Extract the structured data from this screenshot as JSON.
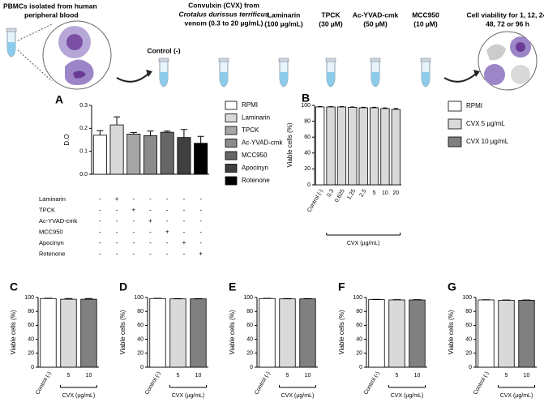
{
  "schematic": {
    "source": [
      "PBMCs isolated from human",
      "peripheral blood"
    ],
    "control": "Control (-)",
    "cvx": [
      "Convulxin (CVX) from",
      "Crotalus durissus terrificus",
      "venom (0.3 to 20 µg/mL)"
    ],
    "treatments": [
      [
        "Laminarin",
        "(100 µg/mL)"
      ],
      [
        "TPCK",
        "(30 µM)"
      ],
      [
        "Ac-YVAD-cmk",
        "(50 µM)"
      ],
      [
        "MCC950",
        "(10 µM)"
      ]
    ],
    "readout": [
      "Cell viability for 1, 12, 24,",
      "48, 72 or 96 h"
    ]
  },
  "chart_data": [
    {
      "type": "bar",
      "panel": "A",
      "ylabel": "D.O",
      "values": [
        0.17,
        0.215,
        0.175,
        0.168,
        0.183,
        0.16,
        0.135
      ],
      "errors": [
        0.02,
        0.035,
        0.007,
        0.02,
        0.005,
        0.035,
        0.03
      ],
      "colors": [
        "#ffffff",
        "#d9d9d9",
        "#a6a6a6",
        "#8c8c8c",
        "#666666",
        "#404040",
        "#000000"
      ],
      "ylim": [
        0,
        0.3
      ],
      "yticks": [
        {
          "value": 0,
          "label": "0.0"
        },
        0.1,
        0.2,
        0.3
      ],
      "legend": [
        {
          "name": "RPMI",
          "color": "#ffffff"
        },
        {
          "name": "Laminarin",
          "color": "#d9d9d9"
        },
        {
          "name": "TPCK",
          "color": "#a6a6a6"
        },
        {
          "name": "Ac-YVAD-cmk",
          "color": "#8c8c8c"
        },
        {
          "name": "MCC950",
          "color": "#666666"
        },
        {
          "name": "Apocinyn",
          "color": "#404040"
        },
        {
          "name": "Rotenone",
          "color": "#000000"
        }
      ],
      "treatments": [
        {
          "name": "Laminarin",
          "marks": [
            "-",
            "+",
            "-",
            "-",
            "-",
            "-",
            "-"
          ]
        },
        {
          "name": "TPCK",
          "marks": [
            "-",
            "-",
            "+",
            "-",
            "-",
            "-",
            "-"
          ]
        },
        {
          "name": "Ac-YVAD-cmk",
          "marks": [
            "-",
            "-",
            "-",
            "+",
            "-",
            "-",
            "-"
          ]
        },
        {
          "name": "MCC950",
          "marks": [
            "-",
            "-",
            "-",
            "-",
            "+",
            "-",
            "-"
          ]
        },
        {
          "name": "Apocinyn",
          "marks": [
            "-",
            "-",
            "-",
            "-",
            "-",
            "+",
            "-"
          ]
        },
        {
          "name": "Rotenone",
          "marks": [
            "-",
            "-",
            "-",
            "-",
            "-",
            "-",
            "+"
          ]
        }
      ]
    },
    {
      "type": "bar",
      "panel": "B",
      "ylabel": "Viable cells (%)",
      "xlabel": "CVX (µg/mL)",
      "categories": [
        "Control (-)",
        "0.3",
        "0.625",
        "1.25",
        "2.5",
        "5",
        "10",
        "20"
      ],
      "values": [
        98,
        98,
        98,
        97.5,
        97,
        97,
        96,
        95
      ],
      "errors": [
        0.5,
        0.4,
        0.4,
        0.5,
        0.6,
        0.6,
        0.8,
        1
      ],
      "colors": [
        "#ffffff",
        "#d9d9d9",
        "#d9d9d9",
        "#d9d9d9",
        "#d9d9d9",
        "#d9d9d9",
        "#d9d9d9",
        "#d9d9d9"
      ],
      "ylim": [
        0,
        100
      ],
      "yticks": [
        0,
        20,
        40,
        60,
        80,
        100
      ],
      "legend": [
        {
          "name": "RPMI",
          "color": "#ffffff"
        },
        {
          "name": "CVX 5 µg/mL",
          "color": "#d9d9d9"
        },
        {
          "name": "CVX 10 µg/mL",
          "color": "#808080"
        }
      ]
    },
    {
      "type": "bar",
      "panel": "C",
      "ylabel": "Viable cells (%)",
      "xlabel": "CVX (µg/mL)",
      "categories": [
        "Control (-)",
        "5",
        "10"
      ],
      "values": [
        98.5,
        97.5,
        97.5
      ],
      "errors": [
        0.4,
        1,
        1
      ],
      "colors": [
        "#ffffff",
        "#d9d9d9",
        "#808080"
      ],
      "ylim": [
        0,
        100
      ],
      "yticks": [
        0,
        20,
        40,
        60,
        80,
        100
      ]
    },
    {
      "type": "bar",
      "panel": "D",
      "ylabel": "Viable cells (%)",
      "xlabel": "CVX (µg/mL)",
      "categories": [
        "Control (-)",
        "5",
        "10"
      ],
      "values": [
        98.5,
        98,
        98
      ],
      "errors": [
        0.3,
        0.4,
        0.4
      ],
      "colors": [
        "#ffffff",
        "#d9d9d9",
        "#808080"
      ],
      "ylim": [
        0,
        100
      ],
      "yticks": [
        0,
        20,
        40,
        60,
        80,
        100
      ]
    },
    {
      "type": "bar",
      "panel": "E",
      "ylabel": "Viable cells (%)",
      "xlabel": "CVX (µg/mL)",
      "categories": [
        "Control (-)",
        "5",
        "10"
      ],
      "values": [
        98.5,
        98,
        98
      ],
      "errors": [
        0.3,
        0.4,
        0.4
      ],
      "colors": [
        "#ffffff",
        "#d9d9d9",
        "#808080"
      ],
      "ylim": [
        0,
        100
      ],
      "yticks": [
        0,
        20,
        40,
        60,
        80,
        100
      ]
    },
    {
      "type": "bar",
      "panel": "F",
      "ylabel": "Viable cells (%)",
      "xlabel": "CVX (µg/mL)",
      "categories": [
        "Control (-)",
        "5",
        "10"
      ],
      "values": [
        97,
        96.5,
        96.5
      ],
      "errors": [
        0.3,
        0.4,
        0.4
      ],
      "colors": [
        "#ffffff",
        "#d9d9d9",
        "#808080"
      ],
      "ylim": [
        0,
        100
      ],
      "yticks": [
        0,
        20,
        40,
        60,
        80,
        100
      ]
    },
    {
      "type": "bar",
      "panel": "G",
      "ylabel": "Viable cells (%)",
      "xlabel": "CVX (µg/mL)",
      "categories": [
        "Control (-)",
        "5",
        "10"
      ],
      "values": [
        96.5,
        96,
        96
      ],
      "errors": [
        0.3,
        0.4,
        0.4
      ],
      "colors": [
        "#ffffff",
        "#d9d9d9",
        "#808080"
      ],
      "ylim": [
        0,
        100
      ],
      "yticks": [
        0,
        20,
        40,
        60,
        80,
        100
      ]
    }
  ]
}
